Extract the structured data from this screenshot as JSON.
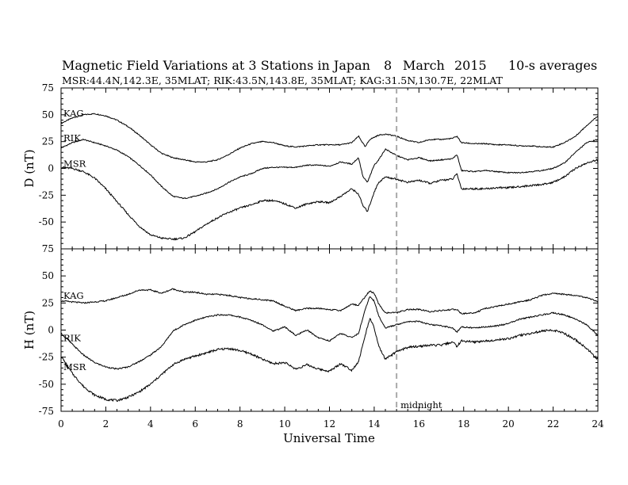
{
  "figure": {
    "title": "Magnetic Field Variations at 3 Stations in Japan",
    "date_day": "8",
    "date_month": "March",
    "date_year": "2015",
    "averaging": "10-s averages",
    "stations_line": "MSR:44.4N,142.3E, 35MLAT;  RIK:43.5N,143.8E, 35MLAT;  KAG:31.5N,130.7E, 22MLAT"
  },
  "chart_data": [
    {
      "type": "line",
      "panel": "D",
      "ylabel": "D (nT)",
      "ylim": [
        -75,
        75
      ],
      "y_ticks": [
        -75,
        -50,
        -25,
        0,
        25,
        50,
        75
      ],
      "xlim": [
        0,
        24
      ],
      "x_ticks": [
        0,
        2,
        4,
        6,
        8,
        10,
        12,
        14,
        16,
        18,
        20,
        22,
        24
      ],
      "grid": false,
      "series": [
        {
          "name": "KAG",
          "x": [
            0,
            0.5,
            1,
            1.5,
            2,
            2.5,
            3,
            3.5,
            4,
            4.5,
            5,
            5.5,
            6,
            6.5,
            7,
            7.5,
            8,
            8.5,
            9,
            9.5,
            10,
            10.5,
            11,
            11.5,
            12,
            12.5,
            13,
            13.3,
            13.6,
            13.8,
            14,
            14.2,
            14.5,
            15,
            15.5,
            16,
            16.5,
            17,
            17.5,
            17.7,
            17.9,
            18.5,
            19,
            19.5,
            20,
            20.5,
            21,
            21.5,
            22,
            22.5,
            23,
            23.5,
            24
          ],
          "y": [
            42,
            47,
            50,
            51,
            49,
            45,
            39,
            31,
            22,
            14,
            10,
            8,
            6,
            6,
            8,
            13,
            19,
            23,
            25,
            24,
            21,
            20,
            21,
            22,
            22,
            22,
            24,
            30,
            20,
            27,
            29,
            31,
            32,
            30,
            26,
            24,
            27,
            27,
            28,
            30,
            24,
            23,
            23,
            22,
            22,
            21,
            21,
            20,
            20,
            24,
            30,
            40,
            49
          ]
        },
        {
          "name": "RIK",
          "x": [
            0,
            0.5,
            1,
            1.5,
            2,
            2.5,
            3,
            3.5,
            4,
            4.5,
            5,
            5.5,
            6,
            6.5,
            7,
            7.5,
            8,
            8.5,
            9,
            9.5,
            10,
            10.5,
            11,
            11.5,
            12,
            12.5,
            13,
            13.3,
            13.5,
            13.7,
            14,
            14.2,
            14.5,
            15,
            15.5,
            16,
            16.5,
            17,
            17.5,
            17.7,
            17.9,
            18.5,
            19,
            19.5,
            20,
            20.5,
            21,
            21.5,
            22,
            22.5,
            23,
            23.5,
            24
          ],
          "y": [
            19,
            24,
            27,
            24,
            21,
            17,
            11,
            3,
            -6,
            -17,
            -26,
            -28,
            -26,
            -23,
            -19,
            -13,
            -8,
            -5,
            0,
            1,
            1,
            1,
            3,
            3,
            2,
            6,
            4,
            10,
            -8,
            -13,
            3,
            8,
            18,
            12,
            8,
            10,
            7,
            8,
            9,
            13,
            -2,
            -3,
            -2,
            -3,
            -4,
            -4,
            -3,
            -2,
            0,
            5,
            15,
            24,
            27
          ]
        },
        {
          "name": "MSR",
          "x": [
            0,
            0.5,
            1,
            1.5,
            2,
            2.5,
            3,
            3.5,
            4,
            4.5,
            5,
            5.5,
            6,
            6.5,
            7,
            7.5,
            8,
            8.5,
            9,
            9.5,
            10,
            10.5,
            11,
            11.5,
            12,
            12.5,
            13,
            13.3,
            13.5,
            13.7,
            14,
            14.2,
            14.5,
            15,
            15.5,
            16,
            16.5,
            17,
            17.5,
            17.7,
            17.9,
            18.5,
            19,
            19.5,
            20,
            20.5,
            21,
            21.5,
            22,
            22.5,
            23,
            23.5,
            24
          ],
          "y": [
            1,
            0,
            -3,
            -9,
            -19,
            -31,
            -43,
            -54,
            -62,
            -65,
            -66,
            -65,
            -59,
            -52,
            -46,
            -41,
            -37,
            -34,
            -30,
            -30,
            -33,
            -37,
            -33,
            -31,
            -32,
            -26,
            -19,
            -24,
            -35,
            -40,
            -22,
            -13,
            -8,
            -10,
            -13,
            -11,
            -14,
            -11,
            -10,
            -5,
            -19,
            -19,
            -19,
            -18,
            -18,
            -17,
            -16,
            -15,
            -13,
            -8,
            0,
            5,
            8
          ]
        }
      ]
    },
    {
      "type": "line",
      "panel": "H",
      "ylabel": "H (nT)",
      "xlabel": "Universal Time",
      "ylim": [
        -75,
        75
      ],
      "y_ticks": [
        -75,
        -50,
        -25,
        0,
        25,
        50,
        75
      ],
      "xlim": [
        0,
        24
      ],
      "x_ticks": [
        0,
        2,
        4,
        6,
        8,
        10,
        12,
        14,
        16,
        18,
        20,
        22,
        24
      ],
      "grid": false,
      "series": [
        {
          "name": "KAG",
          "x": [
            0,
            0.5,
            1,
            1.5,
            2,
            2.5,
            3,
            3.5,
            4,
            4.5,
            5,
            5.5,
            6,
            6.5,
            7,
            7.5,
            8,
            8.5,
            9,
            9.5,
            10,
            10.5,
            11,
            11.5,
            12,
            12.5,
            13,
            13.3,
            13.6,
            13.8,
            14,
            14.2,
            14.5,
            15,
            15.5,
            16,
            16.5,
            17,
            17.5,
            17.7,
            17.9,
            18.5,
            19,
            19.5,
            20,
            20.5,
            21,
            21.5,
            22,
            22.5,
            23,
            23.5,
            24
          ],
          "y": [
            27,
            26,
            25,
            26,
            27,
            30,
            33,
            37,
            37,
            34,
            38,
            35,
            35,
            33,
            33,
            32,
            30,
            29,
            28,
            27,
            22,
            18,
            20,
            20,
            19,
            18,
            24,
            23,
            31,
            36,
            34,
            24,
            16,
            16,
            19,
            19,
            17,
            18,
            19,
            19,
            15,
            16,
            20,
            22,
            24,
            26,
            28,
            32,
            34,
            33,
            32,
            30,
            26
          ]
        },
        {
          "name": "RIK",
          "x": [
            0,
            0.5,
            1,
            1.5,
            2,
            2.5,
            3,
            3.5,
            4,
            4.5,
            5,
            5.5,
            6,
            6.5,
            7,
            7.5,
            8,
            8.5,
            9,
            9.5,
            10,
            10.5,
            11,
            11.5,
            12,
            12.5,
            13,
            13.3,
            13.6,
            13.8,
            14,
            14.2,
            14.5,
            15,
            15.5,
            16,
            16.5,
            17,
            17.5,
            17.7,
            17.9,
            18.5,
            19,
            19.5,
            20,
            20.5,
            21,
            21.5,
            22,
            22.5,
            23,
            23.5,
            24
          ],
          "y": [
            -3,
            -13,
            -23,
            -30,
            -34,
            -36,
            -34,
            -29,
            -23,
            -15,
            -1,
            5,
            9,
            12,
            14,
            14,
            12,
            9,
            5,
            -1,
            3,
            -5,
            0,
            -7,
            -10,
            -3,
            -7,
            -3,
            19,
            31,
            27,
            13,
            2,
            5,
            8,
            8,
            5,
            4,
            2,
            -2,
            3,
            2,
            3,
            4,
            6,
            10,
            12,
            14,
            16,
            14,
            10,
            5,
            -5
          ]
        },
        {
          "name": "MSR",
          "x": [
            0,
            0.5,
            1,
            1.5,
            2,
            2.5,
            3,
            3.5,
            4,
            4.5,
            5,
            5.5,
            6,
            6.5,
            7,
            7.5,
            8,
            8.5,
            9,
            9.5,
            10,
            10.5,
            11,
            11.5,
            12,
            12.5,
            13,
            13.3,
            13.6,
            13.8,
            14,
            14.2,
            14.5,
            15,
            15.5,
            16,
            16.5,
            17,
            17.5,
            17.7,
            17.9,
            18.5,
            19,
            19.5,
            20,
            20.5,
            21,
            21.5,
            22,
            22.5,
            23,
            23.5,
            24
          ],
          "y": [
            -24,
            -40,
            -52,
            -60,
            -64,
            -65,
            -62,
            -57,
            -50,
            -41,
            -32,
            -27,
            -24,
            -21,
            -18,
            -17,
            -19,
            -22,
            -27,
            -31,
            -30,
            -36,
            -32,
            -36,
            -38,
            -31,
            -37,
            -29,
            -5,
            11,
            2,
            -15,
            -27,
            -20,
            -16,
            -15,
            -14,
            -14,
            -11,
            -15,
            -10,
            -11,
            -10,
            -9,
            -8,
            -5,
            -3,
            -1,
            0,
            -3,
            -9,
            -17,
            -27
          ]
        }
      ]
    }
  ],
  "annotations": {
    "midnight_ut": 15,
    "midnight_label": "midnight"
  }
}
